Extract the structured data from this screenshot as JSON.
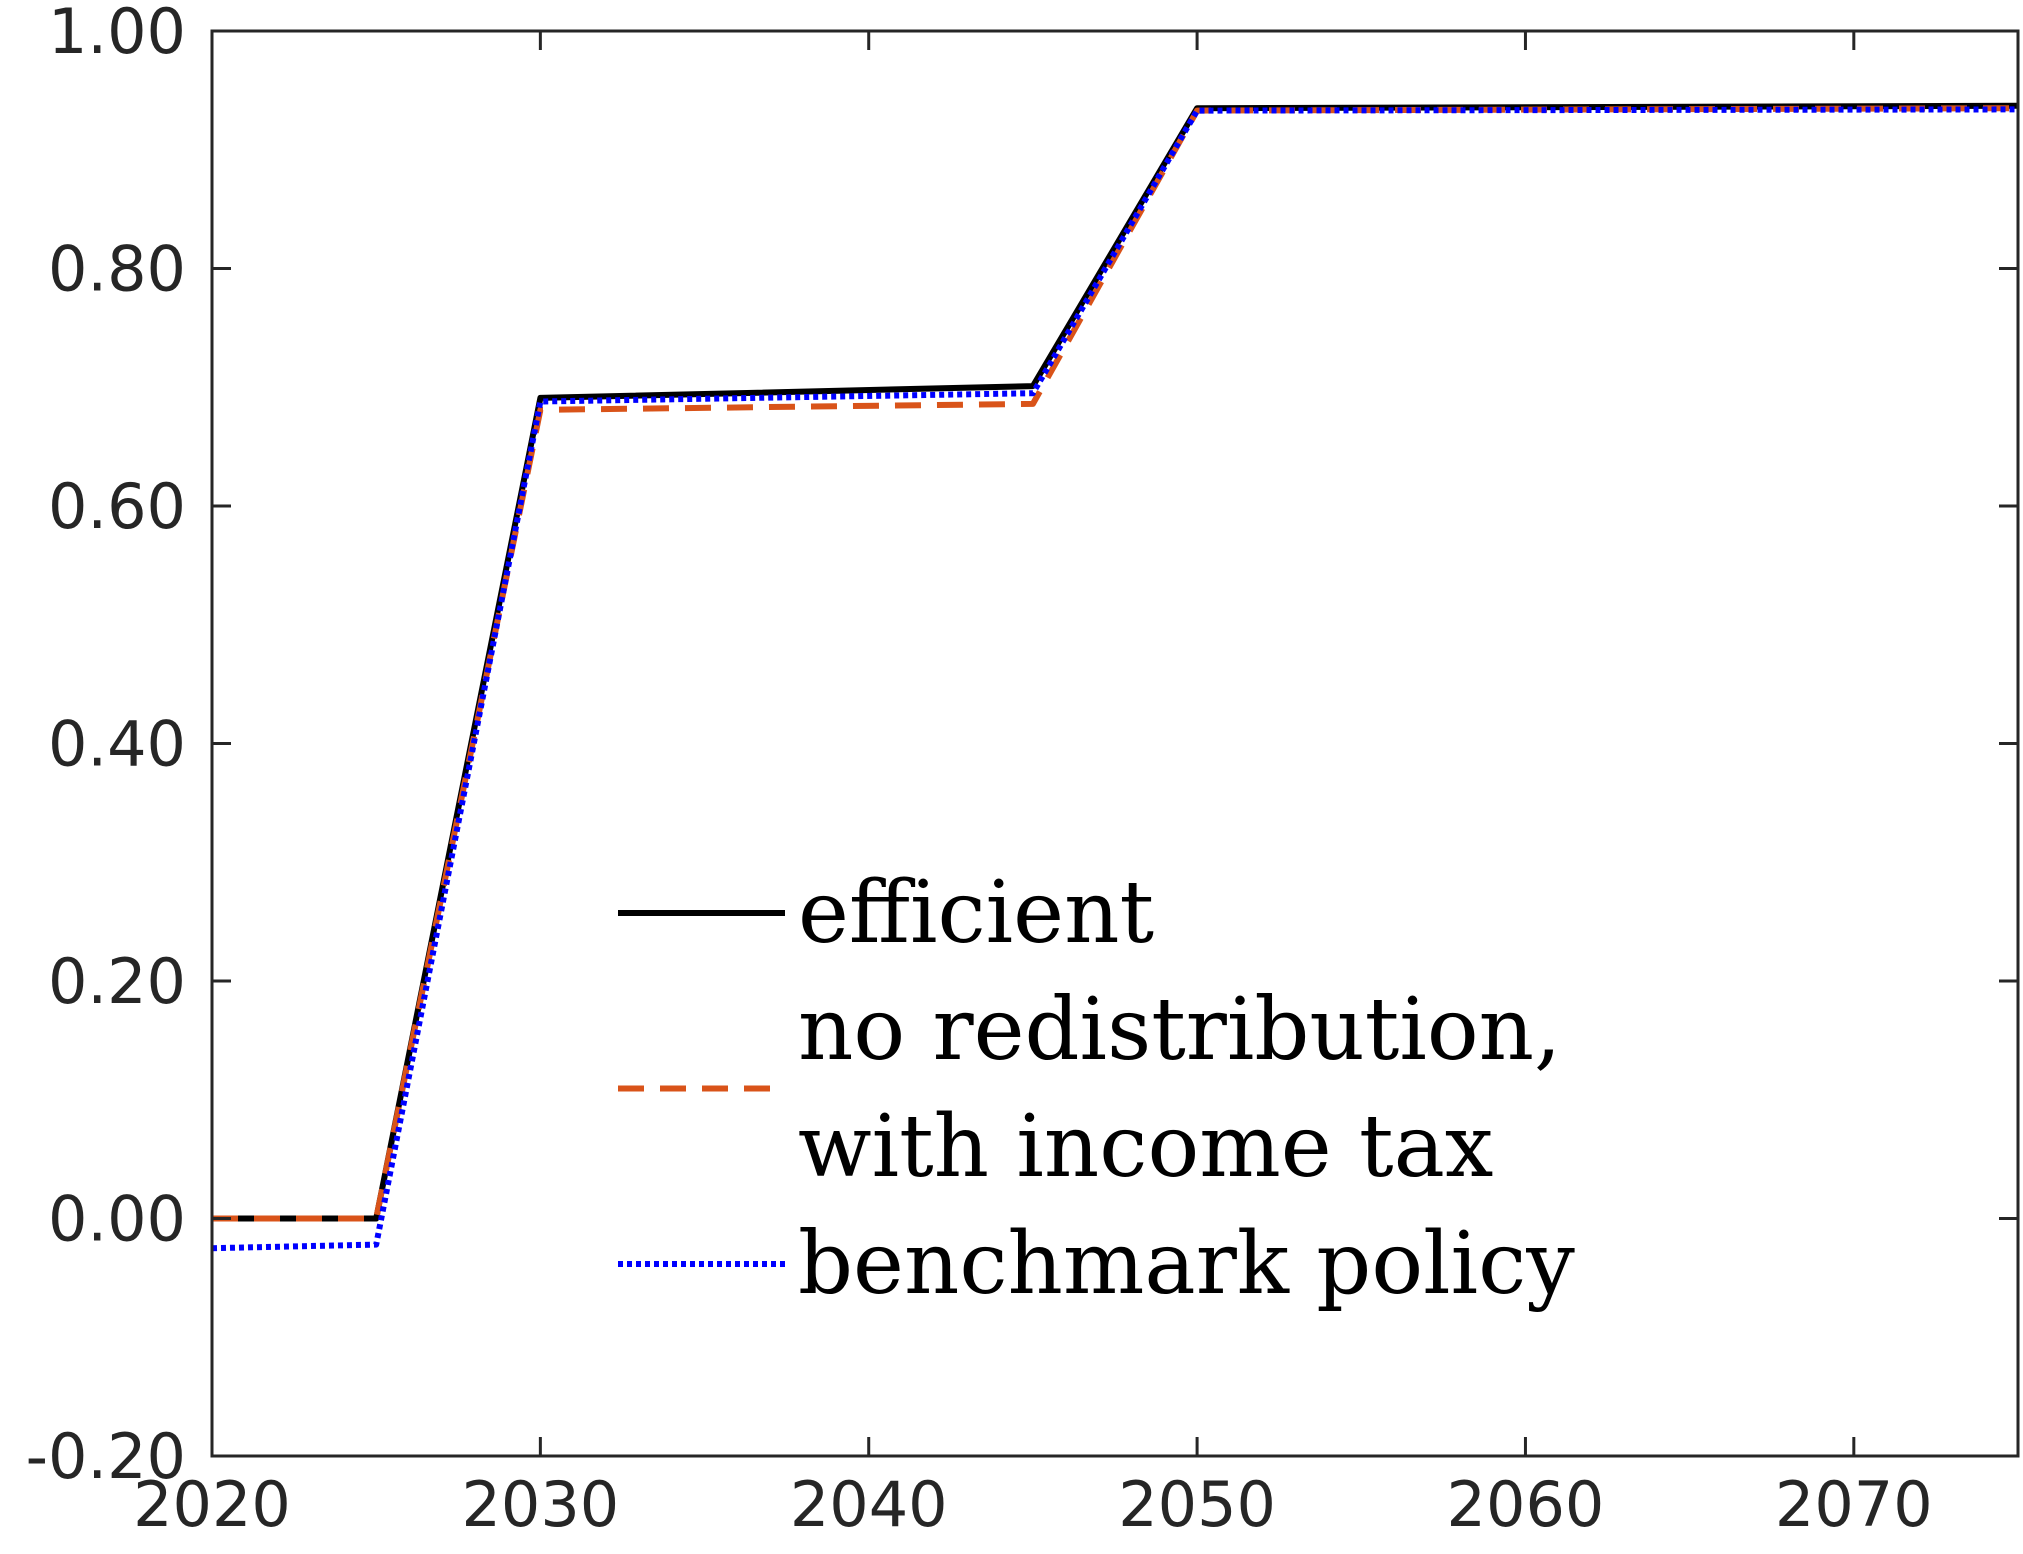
{
  "chart_data": {
    "type": "line",
    "title": "",
    "xlabel": "",
    "ylabel": "",
    "xlim": [
      2020,
      2075
    ],
    "ylim": [
      -0.2,
      1.0
    ],
    "x_ticks": [
      2020,
      2030,
      2040,
      2050,
      2060,
      2070
    ],
    "x_tick_labels": [
      "2020",
      "2030",
      "2040",
      "2050",
      "2060",
      "2070"
    ],
    "y_ticks": [
      -0.2,
      0,
      0.2,
      0.4,
      0.6,
      0.8,
      1.0
    ],
    "y_tick_labels": [
      "-0.20",
      "0.00",
      "0.20",
      "0.40",
      "0.60",
      "0.80",
      "1.00"
    ],
    "grid": false,
    "legend_position": "lower-center",
    "series": [
      {
        "name": "efficient",
        "legend_lines": [
          "efficient"
        ],
        "color": "#000000",
        "dash": "solid",
        "x": [
          2020,
          2025,
          2030,
          2045,
          2050,
          2075
        ],
        "y": [
          0.0,
          0.0,
          0.691,
          0.701,
          0.935,
          0.937
        ]
      },
      {
        "name": "no redistribution, with income tax",
        "legend_lines": [
          "no redistribution,",
          "with income tax"
        ],
        "color": "#D95319",
        "dash": "dashed",
        "x": [
          2020,
          2025,
          2030,
          2045,
          2050,
          2075
        ],
        "y": [
          0.0,
          0.0,
          0.681,
          0.686,
          0.933,
          0.935
        ]
      },
      {
        "name": "benchmark policy",
        "legend_lines": [
          "benchmark policy"
        ],
        "color": "#0000FF",
        "dash": "dotted",
        "x": [
          2020,
          2025,
          2030,
          2045,
          2050,
          2075
        ],
        "y": [
          -0.025,
          -0.022,
          0.688,
          0.695,
          0.933,
          0.934
        ]
      }
    ]
  }
}
